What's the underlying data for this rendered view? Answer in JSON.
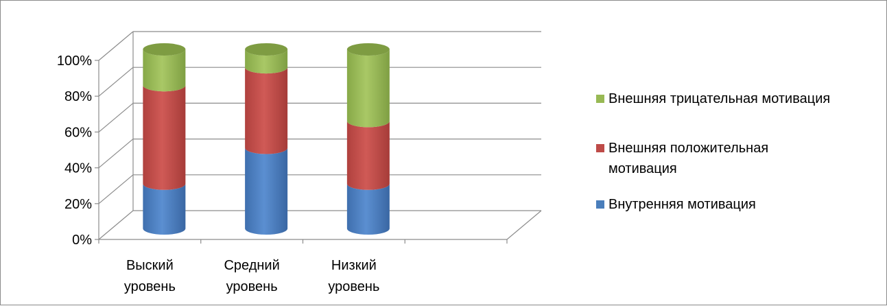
{
  "chart_data": {
    "type": "bar",
    "stacked": true,
    "style": "3d-cylinder",
    "categories": [
      "Выский уровень",
      "Средний уровень",
      "Низкий уровень"
    ],
    "category_lines": [
      [
        "Выский",
        "уровень"
      ],
      [
        "Средний",
        "уровень"
      ],
      [
        "Низкий",
        "уровень"
      ]
    ],
    "y_ticks": [
      "0%",
      "20%",
      "40%",
      "60%",
      "80%",
      "100%"
    ],
    "ylim": [
      0,
      100
    ],
    "grid": true,
    "legend_position": "right",
    "series": [
      {
        "name": "Внутренняя мотивация",
        "values": [
          25,
          45,
          25
        ],
        "color": "#4a7ebb"
      },
      {
        "name": "Внешняя положительная мотивация",
        "values": [
          55,
          45,
          35
        ],
        "color": "#be4b48"
      },
      {
        "name": "Внешняя трицательная мотивация",
        "values": [
          20,
          10,
          40
        ],
        "color": "#98b954"
      }
    ]
  },
  "legend": {
    "items": [
      {
        "label": "Внешняя трицательная мотивация",
        "color": "#98b954"
      },
      {
        "label": "Внешняя положительная мотивация",
        "color": "#be4b48"
      },
      {
        "label": "Внутренняя мотивация",
        "color": "#4a7ebb"
      }
    ]
  }
}
